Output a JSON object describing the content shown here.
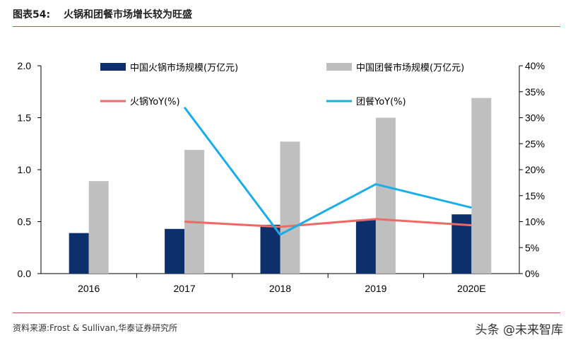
{
  "header": {
    "label": "图表54:",
    "title": "火锅和团餐市场增长较为旺盛"
  },
  "footer": {
    "source": "资料来源:Frost & Sullivan,华泰证券研究所",
    "watermark": "头条 @未来智库"
  },
  "colors": {
    "accent_rule": "#c0504d",
    "hotpot_bar": "#0d2f6b",
    "group_meal_bar": "#bfbfbf",
    "hotpot_yoy": "#ef6a66",
    "group_meal_yoy": "#1aaee8"
  },
  "chart_data": {
    "type": "bar",
    "categories": [
      "2016",
      "2017",
      "2018",
      "2019",
      "2020E"
    ],
    "series": [
      {
        "name": "中国火锅市场规模(万亿元)",
        "kind": "bar",
        "axis": "left",
        "values": [
          0.39,
          0.43,
          0.47,
          0.52,
          0.57
        ]
      },
      {
        "name": "中国团餐市场规模(万亿元)",
        "kind": "bar",
        "axis": "left",
        "values": [
          0.89,
          1.19,
          1.27,
          1.5,
          1.69
        ]
      },
      {
        "name": "火锅YoY(%)",
        "kind": "line",
        "axis": "right",
        "values": [
          null,
          10.0,
          9.0,
          10.5,
          9.3
        ]
      },
      {
        "name": "团餐YoY(%)",
        "kind": "line",
        "axis": "right",
        "values": [
          null,
          32.0,
          7.5,
          17.2,
          12.7
        ]
      }
    ],
    "y_left": {
      "ylim": [
        0,
        2.0
      ],
      "ticks": [
        "0.0",
        "0.5",
        "1.0",
        "1.5",
        "2.0"
      ]
    },
    "y_right": {
      "ylim": [
        0,
        40
      ],
      "ticks": [
        "0%",
        "5%",
        "10%",
        "15%",
        "20%",
        "25%",
        "30%",
        "35%",
        "40%"
      ]
    },
    "legend_position": "top",
    "grid": false
  }
}
